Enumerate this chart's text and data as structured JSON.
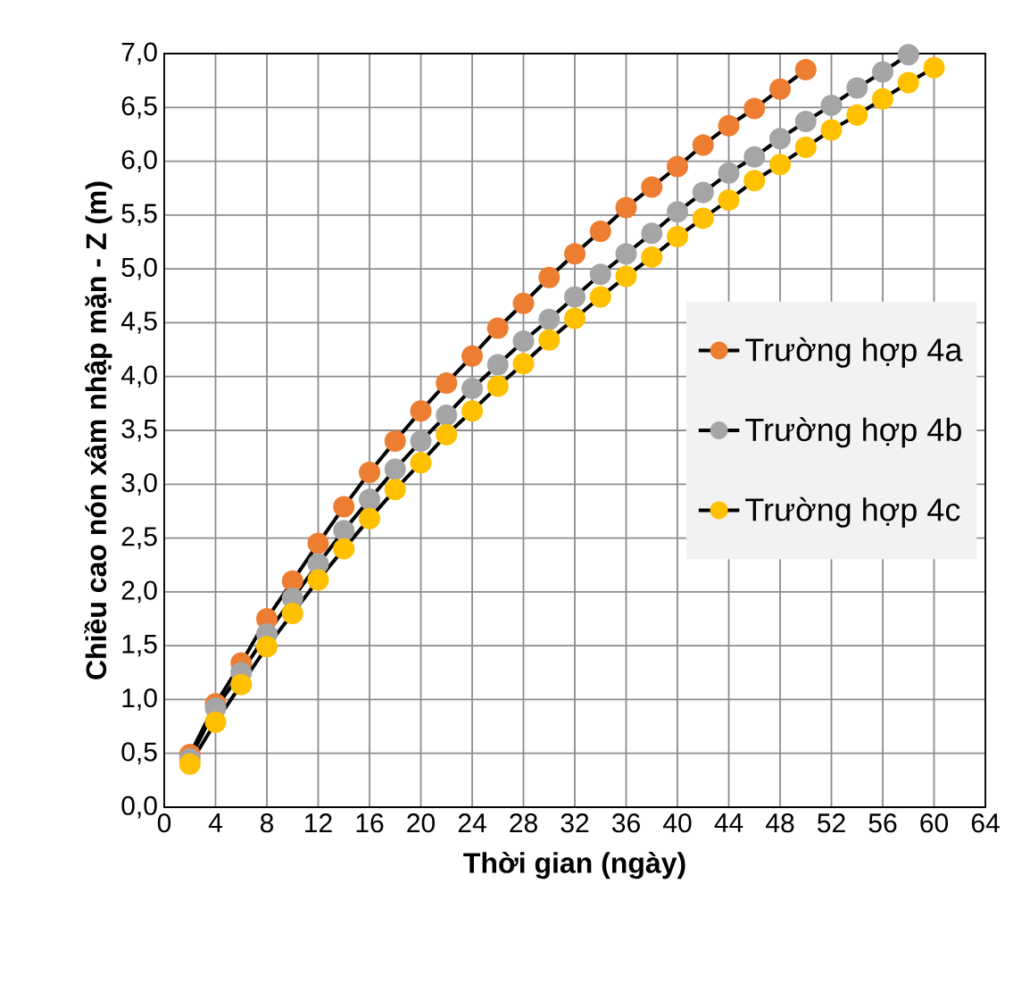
{
  "chart_data": {
    "type": "line",
    "xlabel": "Thời gian (ngày)",
    "ylabel": "Chiều cao nón xâm nhập mặn - Z (m)",
    "xlim": [
      0,
      64
    ],
    "xticks": [
      0,
      4,
      8,
      12,
      16,
      20,
      24,
      28,
      32,
      36,
      40,
      44,
      48,
      52,
      56,
      60,
      64
    ],
    "ylim": [
      0,
      7
    ],
    "yticks": [
      {
        "value": 0,
        "label": "0,0"
      },
      {
        "value": 0.5,
        "label": "0,5"
      },
      {
        "value": 1,
        "label": "1,0"
      },
      {
        "value": 1.5,
        "label": "1,5"
      },
      {
        "value": 2,
        "label": "2,0"
      },
      {
        "value": 2.5,
        "label": "2,5"
      },
      {
        "value": 3,
        "label": "3,0"
      },
      {
        "value": 3.5,
        "label": "3,5"
      },
      {
        "value": 4,
        "label": "4,0"
      },
      {
        "value": 4.5,
        "label": "4,5"
      },
      {
        "value": 5,
        "label": "5,0"
      },
      {
        "value": 5.5,
        "label": "5,5"
      },
      {
        "value": 6,
        "label": "6,0"
      },
      {
        "value": 6.5,
        "label": "6,5"
      },
      {
        "value": 7,
        "label": "7,0"
      }
    ],
    "grid": true,
    "legend": "right",
    "marker": "circle",
    "line_style": "solid",
    "series": [
      {
        "name": "Trường hợp 4a",
        "color": "#ed7d31",
        "x": [
          2,
          4,
          6,
          8,
          10,
          12,
          14,
          16,
          18,
          20,
          22,
          24,
          26,
          28,
          30,
          32,
          34,
          36,
          38,
          40,
          42,
          44,
          46,
          48,
          50
        ],
        "values": [
          0.49,
          0.96,
          1.34,
          1.75,
          2.1,
          2.45,
          2.79,
          3.11,
          3.4,
          3.68,
          3.94,
          4.19,
          4.45,
          4.68,
          4.92,
          5.14,
          5.35,
          5.57,
          5.76,
          5.95,
          6.15,
          6.33,
          6.49,
          6.67,
          6.85
        ]
      },
      {
        "name": "Trường hợp 4b",
        "color": "#a5a5a5",
        "x": [
          2,
          4,
          6,
          8,
          10,
          12,
          14,
          16,
          18,
          20,
          22,
          24,
          26,
          28,
          30,
          32,
          34,
          36,
          38,
          40,
          42,
          44,
          46,
          48,
          50,
          52,
          54,
          56,
          58
        ],
        "values": [
          0.45,
          0.92,
          1.25,
          1.61,
          1.94,
          2.26,
          2.57,
          2.86,
          3.14,
          3.4,
          3.64,
          3.89,
          4.11,
          4.33,
          4.53,
          4.74,
          4.95,
          5.14,
          5.33,
          5.53,
          5.71,
          5.89,
          6.04,
          6.21,
          6.37,
          6.52,
          6.68,
          6.83,
          6.99
        ]
      },
      {
        "name": "Trường hợp 4c",
        "color": "#ffc000",
        "x": [
          2,
          4,
          6,
          8,
          10,
          12,
          14,
          16,
          18,
          20,
          22,
          24,
          26,
          28,
          30,
          32,
          34,
          36,
          38,
          40,
          42,
          44,
          46,
          48,
          50,
          52,
          54,
          56,
          58,
          60
        ],
        "values": [
          0.4,
          0.79,
          1.14,
          1.49,
          1.8,
          2.11,
          2.4,
          2.68,
          2.95,
          3.2,
          3.46,
          3.68,
          3.91,
          4.12,
          4.34,
          4.54,
          4.74,
          4.93,
          5.11,
          5.3,
          5.47,
          5.64,
          5.82,
          5.97,
          6.13,
          6.29,
          6.43,
          6.58,
          6.73,
          6.87
        ]
      }
    ]
  }
}
